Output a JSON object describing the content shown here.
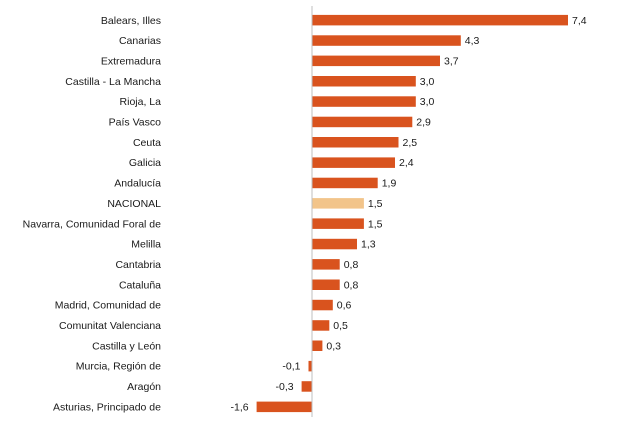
{
  "chart_data": {
    "type": "bar",
    "orientation": "horizontal",
    "categories": [
      "Balears, Illes",
      "Canarias",
      "Extremadura",
      "Castilla - La Mancha",
      "Rioja, La",
      "País Vasco",
      "Ceuta",
      "Galicia",
      "Andalucía",
      "NACIONAL",
      "Navarra, Comunidad Foral de",
      "Melilla",
      "Cantabria",
      "Cataluña",
      "Madrid, Comunidad de",
      "Comunitat Valenciana",
      "Castilla y León",
      "Murcia, Región de",
      "Aragón",
      "Asturias, Principado de"
    ],
    "values": [
      7.4,
      4.3,
      3.7,
      3.0,
      3.0,
      2.9,
      2.5,
      2.4,
      1.9,
      1.5,
      1.5,
      1.3,
      0.8,
      0.8,
      0.6,
      0.5,
      0.3,
      -0.1,
      -0.3,
      -1.6
    ],
    "value_labels": [
      "7,4",
      "4,3",
      "3,7",
      "3,0",
      "3,0",
      "2,9",
      "2,5",
      "2,4",
      "1,9",
      "1,5",
      "1,5",
      "1,3",
      "0,8",
      "0,8",
      "0,6",
      "0,5",
      "0,3",
      "-0,1",
      "-0,3",
      "-1,6"
    ],
    "highlight_category": "NACIONAL",
    "colors": {
      "bar": "#d9531e",
      "highlight": "#f2c48a",
      "axis": "#bfbfbf"
    },
    "xlim": [
      -2,
      7.6
    ],
    "grid": false,
    "legend": "none"
  }
}
